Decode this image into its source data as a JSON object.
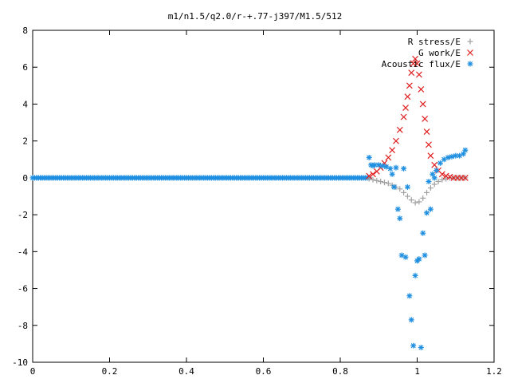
{
  "chart_data": {
    "type": "scatter",
    "title": "m1/n1.5/q2.0/r-+.77-j397/M1.5/512",
    "xlabel": "",
    "ylabel": "",
    "xlim": [
      0,
      1.2
    ],
    "ylim": [
      -10,
      8
    ],
    "x_ticks": [
      "0",
      "0.2",
      "0.4",
      "0.6",
      "0.8",
      "1",
      "1.2"
    ],
    "y_ticks": [
      "8",
      "6",
      "4",
      "2",
      "0",
      "-2",
      "-4",
      "-6",
      "-8",
      "-10"
    ],
    "grid": false,
    "legend_position": "top-right",
    "series": [
      {
        "name": "R stress/E",
        "marker": "plus",
        "color": "#a0a0a0",
        "x": [
          0.875,
          0.885,
          0.895,
          0.905,
          0.915,
          0.925,
          0.935,
          0.945,
          0.955,
          0.965,
          0.975,
          0.985,
          0.995,
          1.005,
          1.015,
          1.025,
          1.035,
          1.045,
          1.055,
          1.065,
          1.075,
          1.085,
          1.095,
          1.105,
          1.115,
          1.125
        ],
        "y": [
          -0.05,
          -0.1,
          -0.15,
          -0.2,
          -0.25,
          -0.3,
          -0.4,
          -0.5,
          -0.6,
          -0.8,
          -1.0,
          -1.2,
          -1.35,
          -1.3,
          -1.1,
          -0.8,
          -0.55,
          -0.35,
          -0.2,
          -0.1,
          -0.05,
          0.0,
          0.0,
          0.0,
          0.0,
          0.0
        ]
      },
      {
        "name": "G work/E",
        "marker": "x",
        "color": "#e02020",
        "x": [
          0.875,
          0.885,
          0.895,
          0.905,
          0.915,
          0.925,
          0.935,
          0.945,
          0.955,
          0.965,
          0.97,
          0.975,
          0.98,
          0.985,
          0.99,
          0.995,
          1.0,
          1.005,
          1.01,
          1.015,
          1.02,
          1.025,
          1.03,
          1.035,
          1.045,
          1.055,
          1.065,
          1.075,
          1.085,
          1.095,
          1.105,
          1.115,
          1.125
        ],
        "y": [
          0.1,
          0.2,
          0.35,
          0.55,
          0.8,
          1.1,
          1.5,
          2.0,
          2.6,
          3.3,
          3.8,
          4.4,
          5.0,
          5.7,
          6.2,
          6.45,
          6.2,
          5.6,
          4.8,
          4.0,
          3.2,
          2.5,
          1.8,
          1.2,
          0.7,
          0.4,
          0.2,
          0.1,
          0.05,
          0.0,
          0.0,
          0.0,
          0.0
        ]
      },
      {
        "name": "Acoustic flux/E",
        "marker": "star",
        "color": "#1f8fe0",
        "x": [
          0.875,
          0.88,
          0.885,
          0.89,
          0.9,
          0.91,
          0.92,
          0.93,
          0.935,
          0.94,
          0.945,
          0.95,
          0.955,
          0.96,
          0.965,
          0.97,
          0.975,
          0.98,
          0.985,
          0.99,
          0.995,
          1.0,
          1.005,
          1.01,
          1.015,
          1.02,
          1.025,
          1.03,
          1.035,
          1.04,
          1.045,
          1.05,
          1.06,
          1.07,
          1.08,
          1.09,
          1.1,
          1.11,
          1.12,
          1.125
        ],
        "y": [
          1.1,
          0.7,
          0.65,
          0.7,
          0.7,
          0.65,
          0.6,
          0.5,
          0.2,
          -0.5,
          0.55,
          -1.7,
          -2.2,
          -4.2,
          0.5,
          -4.3,
          -0.5,
          -6.4,
          -7.7,
          -9.1,
          -5.3,
          -4.5,
          -4.4,
          -9.2,
          -3.0,
          -4.2,
          -1.9,
          -0.2,
          -1.7,
          0.2,
          0.0,
          0.4,
          0.8,
          1.0,
          1.1,
          1.15,
          1.2,
          1.2,
          1.3,
          1.5
        ]
      },
      {
        "name": "Acoustic flux/E (flat)",
        "marker": "star",
        "color": "#1f8fe0",
        "x_start": 0,
        "x_end": 0.875,
        "x_step": 0.005,
        "y_constant": 0
      }
    ]
  }
}
